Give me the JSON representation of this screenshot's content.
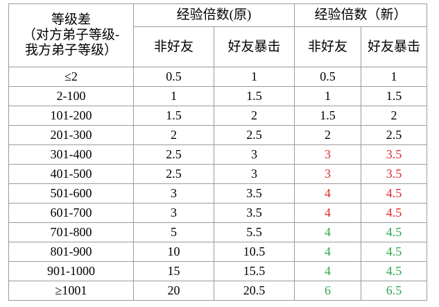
{
  "table": {
    "header": {
      "first": [
        "等级差",
        "（对方弟子等级-",
        "我方弟子等级）"
      ],
      "groups": [
        "经验倍数(原)",
        "经验倍数（新）"
      ],
      "columns": [
        "非好友",
        "好友暴击",
        "非好友",
        "好友暴击"
      ]
    },
    "rows": [
      {
        "cells": [
          "≤2",
          "0.5",
          "1",
          "0.5",
          "1"
        ],
        "color": "#000000"
      },
      {
        "cells": [
          "2-100",
          "1",
          "1.5",
          "1",
          "1.5"
        ],
        "color": "#000000"
      },
      {
        "cells": [
          "101-200",
          "1.5",
          "2",
          "1.5",
          "2"
        ],
        "color": "#000000"
      },
      {
        "cells": [
          "201-300",
          "2",
          "2.5",
          "2",
          "2.5"
        ],
        "color": "#000000"
      },
      {
        "cells": [
          "301-400",
          "2.5",
          "3",
          "3",
          "3.5"
        ],
        "color": "#e02a2a"
      },
      {
        "cells": [
          "401-500",
          "2.5",
          "3",
          "3",
          "3.5"
        ],
        "color": "#e02a2a"
      },
      {
        "cells": [
          "501-600",
          "3",
          "3.5",
          "4",
          "4.5"
        ],
        "color": "#e02a2a"
      },
      {
        "cells": [
          "601-700",
          "3",
          "3.5",
          "4",
          "4.5"
        ],
        "color": "#e02a2a"
      },
      {
        "cells": [
          "701-800",
          "5",
          "5.5",
          "4",
          "4.5"
        ],
        "color": "#2ca84a"
      },
      {
        "cells": [
          "801-900",
          "10",
          "10.5",
          "4",
          "4.5"
        ],
        "color": "#2ca84a"
      },
      {
        "cells": [
          "901-1000",
          "15",
          "15.5",
          "4",
          "4.5"
        ],
        "color": "#2ca84a"
      },
      {
        "cells": [
          "≥1001",
          "20",
          "20.5",
          "6",
          "6.5"
        ],
        "color": "#2ca84a"
      }
    ]
  }
}
